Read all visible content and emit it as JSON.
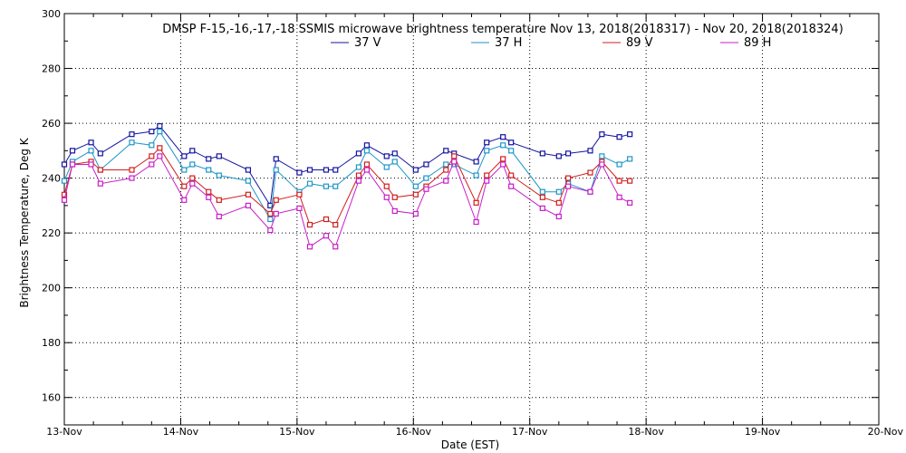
{
  "chart_data": {
    "type": "line",
    "title": "DMSP F-15,-16,-17,-18 SSMIS microwave brightness temperature Nov 13, 2018(2018317) - Nov 20, 2018(2018324)",
    "xlabel": "Date (EST)",
    "ylabel": "Brightness Temperature, Deg K",
    "xlim": [
      0,
      7
    ],
    "ylim": [
      150,
      300
    ],
    "grid": true,
    "legend_position": "top-center",
    "x_ticks": [
      {
        "value": 0,
        "label": "13-Nov"
      },
      {
        "value": 1,
        "label": "14-Nov"
      },
      {
        "value": 2,
        "label": "15-Nov"
      },
      {
        "value": 3,
        "label": "16-Nov"
      },
      {
        "value": 4,
        "label": "17-Nov"
      },
      {
        "value": 5,
        "label": "18-Nov"
      },
      {
        "value": 6,
        "label": "19-Nov"
      },
      {
        "value": 7,
        "label": "20-Nov"
      }
    ],
    "y_ticks": [
      {
        "value": 160,
        "label": "160"
      },
      {
        "value": 180,
        "label": "180"
      },
      {
        "value": 200,
        "label": "200"
      },
      {
        "value": 220,
        "label": "220"
      },
      {
        "value": 240,
        "label": "240"
      },
      {
        "value": 260,
        "label": "260"
      },
      {
        "value": 280,
        "label": "280"
      },
      {
        "value": 300,
        "label": "300"
      }
    ],
    "series": [
      {
        "name": "37 V",
        "color": "#1414a0",
        "points": [
          [
            0.0,
            245
          ],
          [
            0.07,
            250
          ],
          [
            0.23,
            253
          ],
          [
            0.31,
            249
          ],
          [
            0.58,
            256
          ],
          [
            0.75,
            257
          ],
          [
            0.82,
            259
          ],
          [
            1.03,
            248
          ],
          [
            1.1,
            250
          ],
          [
            1.24,
            247
          ],
          [
            1.33,
            248
          ],
          [
            1.58,
            243
          ],
          [
            1.77,
            230
          ],
          [
            1.82,
            247
          ],
          [
            2.02,
            242
          ],
          [
            2.11,
            243
          ],
          [
            2.25,
            243
          ],
          [
            2.33,
            243
          ],
          [
            2.53,
            249
          ],
          [
            2.6,
            252
          ],
          [
            2.77,
            248
          ],
          [
            2.84,
            249
          ],
          [
            3.02,
            243
          ],
          [
            3.11,
            245
          ],
          [
            3.28,
            250
          ],
          [
            3.35,
            249
          ],
          [
            3.54,
            246
          ],
          [
            3.63,
            253
          ],
          [
            3.77,
            255
          ],
          [
            3.84,
            253
          ],
          [
            4.11,
            249
          ],
          [
            4.25,
            248
          ],
          [
            4.33,
            249
          ],
          [
            4.52,
            250
          ],
          [
            4.62,
            256
          ],
          [
            4.77,
            255
          ],
          [
            4.86,
            256
          ]
        ]
      },
      {
        "name": "37 H",
        "color": "#1e96c8",
        "points": [
          [
            0.0,
            239
          ],
          [
            0.07,
            246
          ],
          [
            0.23,
            250
          ],
          [
            0.31,
            243
          ],
          [
            0.58,
            253
          ],
          [
            0.75,
            252
          ],
          [
            0.82,
            257
          ],
          [
            1.03,
            243
          ],
          [
            1.1,
            245
          ],
          [
            1.24,
            243
          ],
          [
            1.33,
            241
          ],
          [
            1.58,
            239
          ],
          [
            1.77,
            225
          ],
          [
            1.82,
            243
          ],
          [
            2.02,
            235
          ],
          [
            2.11,
            238
          ],
          [
            2.25,
            237
          ],
          [
            2.33,
            237
          ],
          [
            2.53,
            244
          ],
          [
            2.6,
            250
          ],
          [
            2.77,
            244
          ],
          [
            2.84,
            246
          ],
          [
            3.02,
            237
          ],
          [
            3.11,
            240
          ],
          [
            3.28,
            245
          ],
          [
            3.35,
            245
          ],
          [
            3.54,
            241
          ],
          [
            3.63,
            250
          ],
          [
            3.77,
            252
          ],
          [
            3.84,
            250
          ],
          [
            4.11,
            235
          ],
          [
            4.25,
            235
          ],
          [
            4.33,
            238
          ],
          [
            4.52,
            235
          ],
          [
            4.62,
            248
          ],
          [
            4.77,
            245
          ],
          [
            4.86,
            247
          ]
        ]
      },
      {
        "name": "89 V",
        "color": "#d21e1e",
        "points": [
          [
            0.0,
            234
          ],
          [
            0.07,
            245
          ],
          [
            0.23,
            246
          ],
          [
            0.31,
            243
          ],
          [
            0.58,
            243
          ],
          [
            0.75,
            248
          ],
          [
            0.82,
            251
          ],
          [
            1.03,
            237
          ],
          [
            1.1,
            240
          ],
          [
            1.24,
            235
          ],
          [
            1.33,
            232
          ],
          [
            1.58,
            234
          ],
          [
            1.77,
            227
          ],
          [
            1.82,
            232
          ],
          [
            2.02,
            234
          ],
          [
            2.11,
            223
          ],
          [
            2.25,
            225
          ],
          [
            2.33,
            223
          ],
          [
            2.53,
            241
          ],
          [
            2.6,
            245
          ],
          [
            2.77,
            237
          ],
          [
            2.84,
            233
          ],
          [
            3.02,
            234
          ],
          [
            3.11,
            237
          ],
          [
            3.28,
            243
          ],
          [
            3.35,
            248
          ],
          [
            3.54,
            231
          ],
          [
            3.63,
            241
          ],
          [
            3.77,
            247
          ],
          [
            3.84,
            241
          ],
          [
            4.11,
            233
          ],
          [
            4.25,
            231
          ],
          [
            4.33,
            240
          ],
          [
            4.52,
            242
          ],
          [
            4.62,
            246
          ],
          [
            4.77,
            239
          ],
          [
            4.86,
            239
          ]
        ]
      },
      {
        "name": "89 H",
        "color": "#c81ec8",
        "points": [
          [
            0.0,
            232
          ],
          [
            0.07,
            245
          ],
          [
            0.23,
            245
          ],
          [
            0.31,
            238
          ],
          [
            0.58,
            240
          ],
          [
            0.75,
            245
          ],
          [
            0.82,
            248
          ],
          [
            1.03,
            232
          ],
          [
            1.1,
            238
          ],
          [
            1.24,
            233
          ],
          [
            1.33,
            226
          ],
          [
            1.58,
            230
          ],
          [
            1.77,
            221
          ],
          [
            1.82,
            227
          ],
          [
            2.02,
            229
          ],
          [
            2.11,
            215
          ],
          [
            2.25,
            219
          ],
          [
            2.33,
            215
          ],
          [
            2.53,
            239
          ],
          [
            2.6,
            243
          ],
          [
            2.77,
            233
          ],
          [
            2.84,
            228
          ],
          [
            3.02,
            227
          ],
          [
            3.11,
            236
          ],
          [
            3.28,
            239
          ],
          [
            3.35,
            246
          ],
          [
            3.54,
            224
          ],
          [
            3.63,
            239
          ],
          [
            3.77,
            245
          ],
          [
            3.84,
            237
          ],
          [
            4.11,
            229
          ],
          [
            4.25,
            226
          ],
          [
            4.33,
            237
          ],
          [
            4.52,
            235
          ],
          [
            4.62,
            245
          ],
          [
            4.77,
            233
          ],
          [
            4.86,
            231
          ]
        ]
      }
    ]
  }
}
